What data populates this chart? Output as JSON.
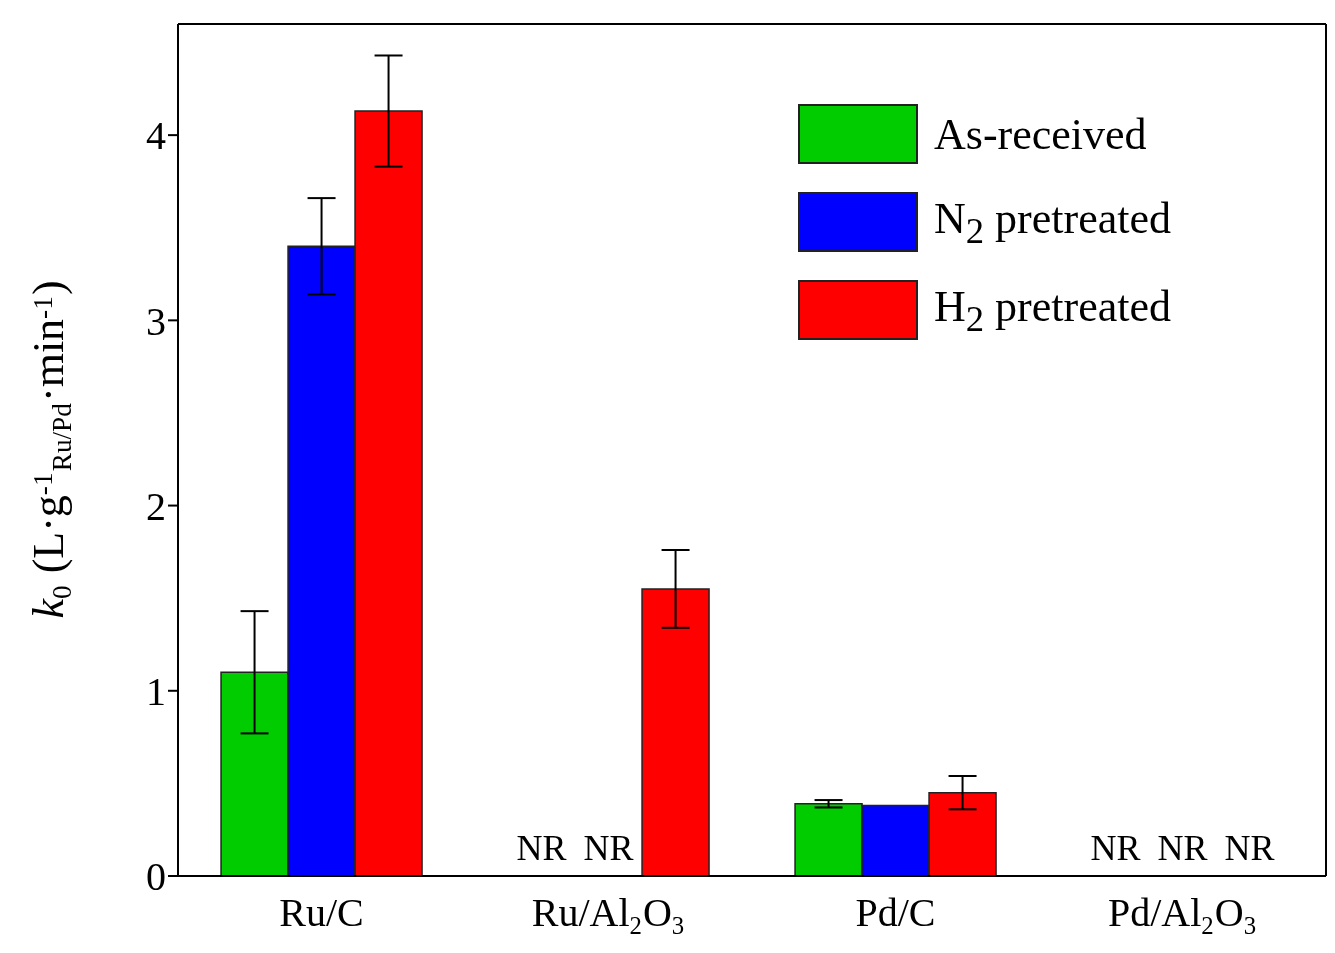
{
  "chart_data": {
    "type": "bar",
    "categories": [
      "Ru/C",
      "Ru/Al$_{2}$O$_{3}$",
      "Pd/C",
      "Pd/Al$_{2}$O$_{3}$"
    ],
    "series": [
      {
        "name": "As-received",
        "color": "#00cc00",
        "values": [
          1.1,
          null,
          0.39,
          null
        ],
        "errors": [
          0.33,
          null,
          0.02,
          null
        ],
        "value_labels": [
          null,
          "NR",
          null,
          "NR"
        ]
      },
      {
        "name": "N$_{2}$ pretreated",
        "color": "#0000ff",
        "values": [
          3.4,
          null,
          0.38,
          null
        ],
        "errors": [
          0.26,
          null,
          null,
          null
        ],
        "value_labels": [
          null,
          "NR",
          null,
          "NR"
        ]
      },
      {
        "name": "H$_{2}$ pretreated",
        "color": "#ff0000",
        "values": [
          4.13,
          1.55,
          0.45,
          null
        ],
        "errors": [
          0.3,
          0.21,
          0.09,
          null
        ],
        "value_labels": [
          null,
          null,
          null,
          "NR"
        ]
      }
    ],
    "ylabel": "k$_{0}$ (L·g$^{-1}$$_{Ru/Pd}$·min$^{-1}$)",
    "ylim": [
      0,
      4.6
    ],
    "yticks": [
      0,
      1,
      2,
      3,
      4
    ],
    "legend": "top right",
    "grid": false
  }
}
